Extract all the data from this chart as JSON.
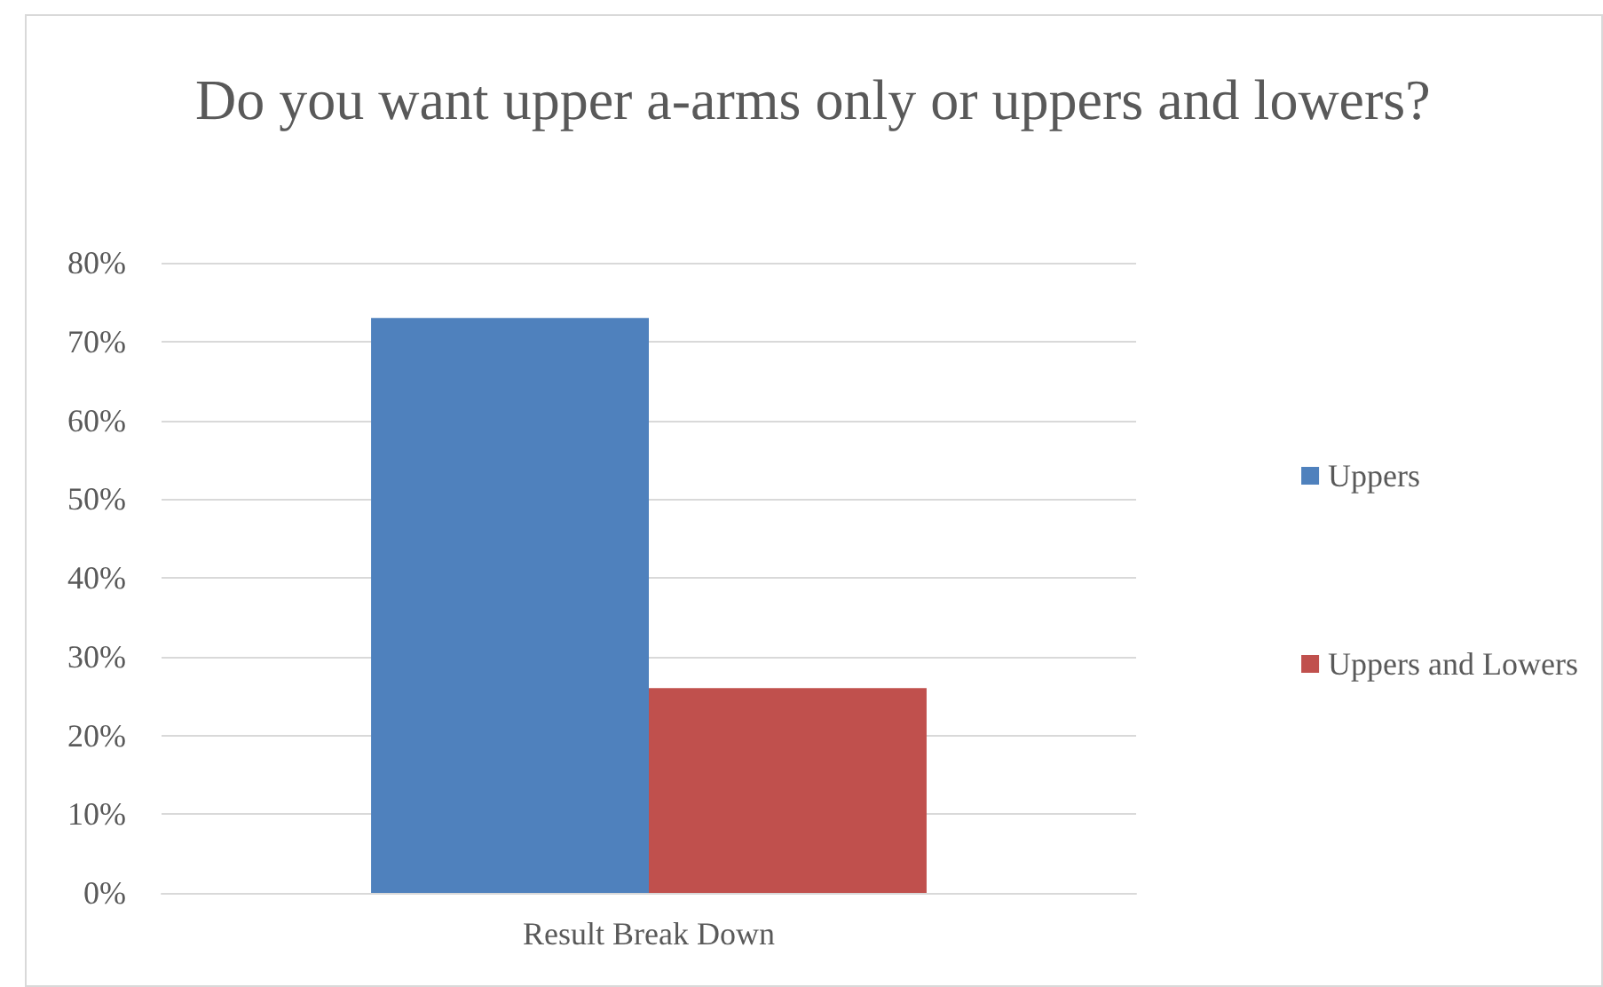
{
  "chart_data": {
    "type": "bar",
    "title": "Do you want upper a-arms only or uppers and lowers?",
    "categories": [
      "Result Break Down"
    ],
    "series": [
      {
        "name": "Uppers",
        "color": "#4f81bd",
        "values": [
          73
        ]
      },
      {
        "name": "Uppers and Lowers",
        "color": "#c0504d",
        "values": [
          26
        ]
      }
    ],
    "ylim": [
      0,
      80
    ],
    "yticks": [
      {
        "value": 0,
        "label": "0%"
      },
      {
        "value": 10,
        "label": "10%"
      },
      {
        "value": 20,
        "label": "20%"
      },
      {
        "value": 30,
        "label": "30%"
      },
      {
        "value": 40,
        "label": "40%"
      },
      {
        "value": 50,
        "label": "50%"
      },
      {
        "value": 60,
        "label": "60%"
      },
      {
        "value": 70,
        "label": "70%"
      },
      {
        "value": 80,
        "label": "80%"
      }
    ],
    "grid": "y",
    "legend": "right"
  }
}
